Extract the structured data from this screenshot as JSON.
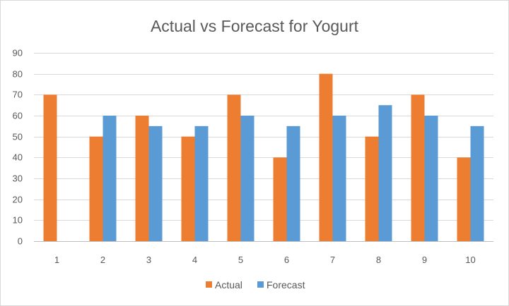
{
  "chart_data": {
    "type": "bar",
    "title": "Actual vs Forecast for Yogurt",
    "xlabel": "",
    "ylabel": "",
    "categories": [
      "1",
      "2",
      "3",
      "4",
      "5",
      "6",
      "7",
      "8",
      "9",
      "10"
    ],
    "series": [
      {
        "name": "Actual",
        "color": "#ed7d31",
        "values": [
          70,
          50,
          60,
          50,
          70,
          40,
          80,
          50,
          70,
          40
        ]
      },
      {
        "name": "Forecast",
        "color": "#5b9bd5",
        "values": [
          null,
          60,
          55,
          55,
          60,
          55,
          60,
          65,
          60,
          55
        ]
      }
    ],
    "ylim": [
      0,
      90
    ],
    "yticks": [
      "0",
      "10",
      "20",
      "30",
      "40",
      "50",
      "60",
      "70",
      "80",
      "90"
    ],
    "grid": true,
    "legend_position": "bottom"
  }
}
